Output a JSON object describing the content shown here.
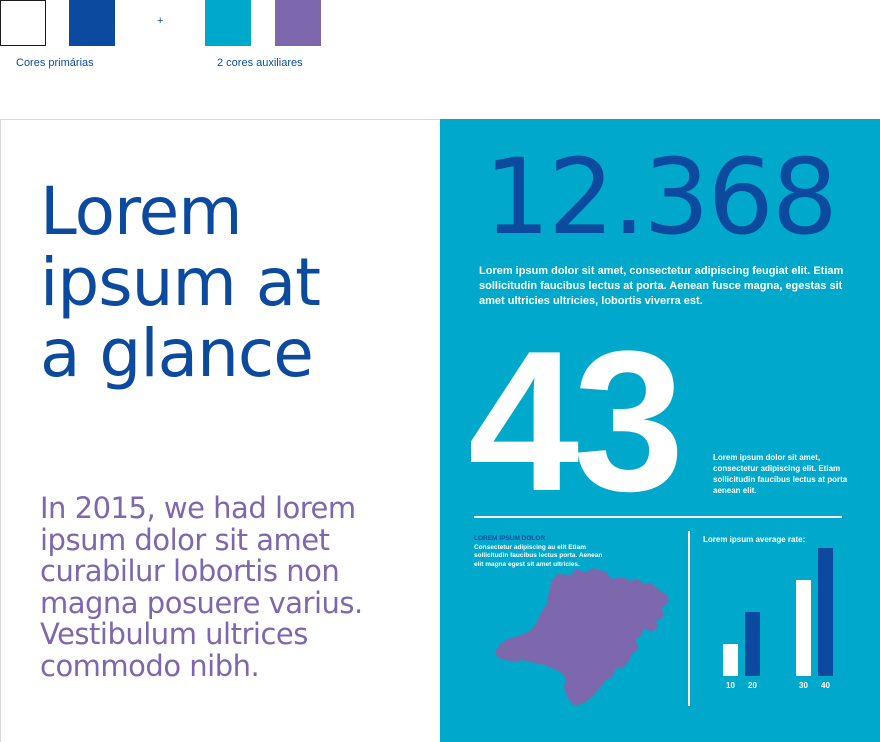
{
  "palette": {
    "primary_colors": [
      "#ffffff",
      "#0b4a9e"
    ],
    "auxiliary_colors": [
      "#00a9cc",
      "#7d67ad"
    ],
    "plus": "+",
    "primary_label": "Cores primárias",
    "auxiliary_label": "2 cores auxiliares"
  },
  "left": {
    "title_lines": [
      "Lorem",
      "ipsum at",
      "a glance"
    ],
    "intro": "In 2015, we had lorem ipsum dolor sit amet curabilur lobortis non magna posuere varius. Vestibulum ultrices commodo nibh."
  },
  "right": {
    "big_number": "12.368",
    "big_number_desc": "Lorem ipsum dolor sit amet, consectetur adipiscing feugiat elit. Etiam sollicitudin faucibus lectus at porta. Aenean fusce magna, egestas sit amet ultricies ultricies, lobortis viverra est.",
    "stat": "43",
    "stat_desc": "Lorem ipsum dolor sit amet, consectetur adipiscing elit. Etiam sollicitudin faucibus lectus at porta aenean elit.",
    "map_title": "LOREM IPSUM DOLOR",
    "map_desc": "Consectetur adipiscing au elit Etiam sollicitudin faucibus lectus porta. Aenean elit magna egest sit amet ultricies."
  },
  "chart_data": {
    "type": "bar",
    "title": "Lorem ipsum average rate:",
    "categories": [
      "10",
      "20",
      "30",
      "40"
    ],
    "values": [
      10,
      20,
      30,
      40
    ],
    "colors": [
      "#ffffff",
      "#0b4a9e",
      "#ffffff",
      "#0b4a9e"
    ],
    "ylim": [
      0,
      40
    ]
  },
  "colors": {
    "brand_blue": "#0b4a9e",
    "cyan": "#00a9cc",
    "purple": "#7d67ad",
    "white": "#ffffff"
  }
}
